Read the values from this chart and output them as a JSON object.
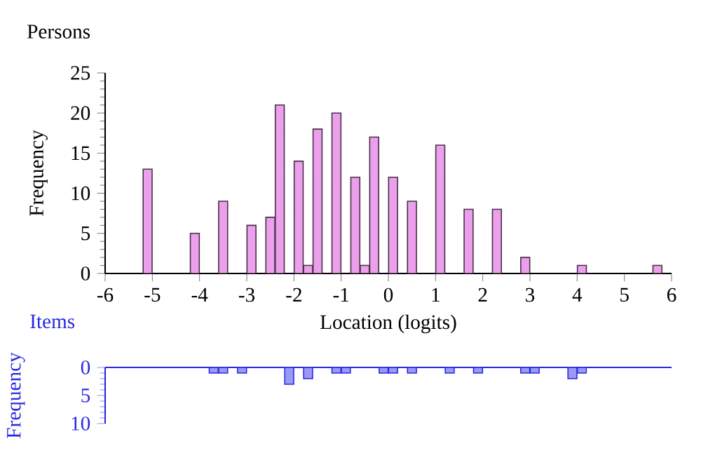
{
  "chart_data": [
    {
      "type": "bar",
      "title": "Persons",
      "xlabel": "Location (logits)",
      "ylabel": "Frequency",
      "color": "#eca0ec",
      "x": [
        -5.1,
        -4.1,
        -3.5,
        -2.9,
        -2.5,
        -2.3,
        -1.9,
        -1.7,
        -1.5,
        -1.1,
        -0.7,
        -0.5,
        -0.3,
        0.1,
        0.5,
        1.1,
        1.7,
        2.3,
        2.9,
        4.1,
        5.7
      ],
      "values": [
        13,
        5,
        9,
        6,
        7,
        21,
        14,
        1,
        18,
        20,
        12,
        1,
        17,
        12,
        9,
        16,
        8,
        8,
        2,
        1,
        1
      ],
      "xlim": [
        -6,
        6
      ],
      "xticks": [
        -6,
        -5,
        -4,
        -3,
        -2,
        -1,
        0,
        1,
        2,
        3,
        4,
        5,
        6
      ],
      "ylim": [
        0,
        25
      ],
      "yticks": [
        0,
        5,
        10,
        15,
        20,
        25
      ],
      "grid": false
    },
    {
      "type": "bar",
      "title": "Items",
      "ylabel": "Frequency",
      "color": "#9a9af5",
      "x": [
        -3.7,
        -3.5,
        -3.1,
        -2.1,
        -1.7,
        -1.1,
        -0.9,
        -0.1,
        0.1,
        0.5,
        1.3,
        1.9,
        2.9,
        3.1,
        3.9,
        4.1
      ],
      "values": [
        1,
        1,
        1,
        3,
        2,
        1,
        1,
        1,
        1,
        1,
        1,
        1,
        1,
        1,
        2,
        1
      ],
      "xlim": [
        -6,
        6
      ],
      "ylim": [
        10,
        0
      ],
      "yticks": [
        0,
        5,
        10
      ],
      "tick_labels": "y",
      "grid": false
    }
  ]
}
